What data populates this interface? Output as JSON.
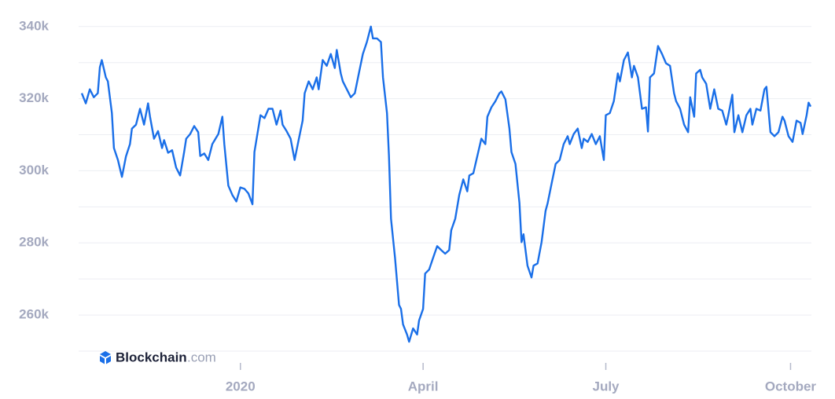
{
  "chart_data": {
    "type": "line",
    "watermark": {
      "brand": "Blockchain",
      "suffix": ".com"
    },
    "x": [
      -79,
      -77,
      -75,
      -73,
      -71,
      -70,
      -69,
      -67,
      -66,
      -64,
      -63,
      -61,
      -59,
      -57,
      -55,
      -54,
      -52,
      -50,
      -48,
      -46,
      -45,
      -43,
      -41,
      -39,
      -38,
      -36,
      -34,
      -32,
      -30,
      -28,
      -27,
      -25,
      -23,
      -21,
      -20,
      -18,
      -16,
      -14,
      -11,
      -9,
      -8,
      -6,
      -4,
      -2,
      0,
      2,
      4,
      6,
      7,
      10,
      12,
      14,
      16,
      18,
      20,
      21,
      23,
      25,
      27,
      29,
      31,
      32,
      34,
      36,
      38,
      39,
      41,
      43,
      45,
      47,
      48,
      50,
      51,
      53,
      55,
      57,
      59,
      61,
      63,
      65,
      66,
      68,
      70,
      71,
      73,
      74,
      75,
      77,
      79,
      80,
      81,
      83,
      84,
      86,
      88,
      89,
      91,
      92,
      94,
      96,
      98,
      100,
      102,
      104,
      105,
      107,
      109,
      111,
      113,
      114,
      116,
      118,
      120,
      122,
      123,
      125,
      127,
      129,
      130,
      132,
      134,
      135,
      137,
      139,
      140,
      141,
      143,
      145,
      146,
      148,
      150,
      152,
      153,
      155,
      157,
      159,
      161,
      163,
      164,
      166,
      168,
      170,
      171,
      173,
      175,
      177,
      179,
      181,
      182,
      184,
      186,
      188,
      189,
      191,
      193,
      195,
      196,
      198,
      200,
      202,
      203,
      204,
      206,
      208,
      210,
      212,
      214,
      216,
      217,
      219,
      221,
      223,
      224,
      226,
      227,
      229,
      230,
      232,
      234,
      236,
      238,
      240,
      242,
      243,
      245,
      246,
      248,
      250,
      252,
      254,
      255,
      257,
      259,
      261,
      262,
      264,
      266,
      268,
      270,
      271,
      273,
      275,
      277,
      279,
      280,
      282,
      283,
      284
    ],
    "series": [
      {
        "color": "#1a6fe8",
        "values": [
          321500,
          318700,
          322600,
          320400,
          321500,
          328700,
          330700,
          325900,
          324800,
          316000,
          306300,
          303000,
          298300,
          304000,
          307400,
          311700,
          312800,
          317200,
          312800,
          318700,
          315000,
          308900,
          311000,
          306300,
          308500,
          305000,
          305700,
          300900,
          298700,
          305200,
          308900,
          310200,
          312400,
          310700,
          304100,
          304800,
          303000,
          307400,
          310200,
          315000,
          307400,
          295900,
          293300,
          291500,
          295400,
          295000,
          293700,
          290700,
          305200,
          315400,
          314600,
          317200,
          317200,
          312800,
          316700,
          312800,
          311000,
          308900,
          303000,
          308500,
          313900,
          321500,
          324800,
          322600,
          325900,
          322600,
          330700,
          329100,
          332400,
          328500,
          333500,
          327000,
          324800,
          322600,
          320400,
          321500,
          327000,
          332400,
          335700,
          340000,
          336700,
          336700,
          335700,
          325900,
          316000,
          304100,
          286700,
          275900,
          262800,
          261700,
          257400,
          254600,
          252600,
          256300,
          254600,
          258500,
          261700,
          271500,
          272600,
          275900,
          279100,
          278000,
          277000,
          278000,
          283500,
          286700,
          293300,
          297600,
          294300,
          298700,
          299300,
          304100,
          308900,
          307400,
          315000,
          317600,
          319300,
          321500,
          322000,
          319800,
          311700,
          305200,
          301900,
          291000,
          280200,
          282400,
          273700,
          270400,
          273700,
          274300,
          280200,
          288900,
          291000,
          296500,
          301900,
          303000,
          307400,
          309600,
          307400,
          310200,
          311700,
          306300,
          308900,
          308000,
          310200,
          307400,
          309600,
          303000,
          315400,
          316000,
          319300,
          327000,
          324800,
          330700,
          332800,
          325900,
          329100,
          325900,
          317200,
          317600,
          310900,
          325900,
          327000,
          334600,
          332400,
          329800,
          329100,
          321500,
          319300,
          317200,
          312800,
          310700,
          320400,
          315000,
          327000,
          328000,
          325900,
          324100,
          317200,
          322600,
          317200,
          316700,
          312800,
          315400,
          321100,
          310700,
          315400,
          310700,
          315400,
          317200,
          312800,
          317200,
          316700,
          322600,
          323300,
          310700,
          309600,
          310700,
          315000,
          313900,
          309600,
          308000,
          313900,
          313300,
          310200,
          315400,
          318900,
          317800
        ]
      }
    ],
    "xlim": [
      -79,
      284
    ],
    "xticks": [
      {
        "value": 0,
        "label": "2020"
      },
      {
        "value": 91,
        "label": "April"
      },
      {
        "value": 182,
        "label": "July"
      },
      {
        "value": 274,
        "label": "October"
      }
    ],
    "ylim": [
      250000,
      343000
    ],
    "yticks": [
      {
        "value": 260000,
        "label": "260k"
      },
      {
        "value": 280000,
        "label": "280k"
      },
      {
        "value": 300000,
        "label": "300k"
      },
      {
        "value": 320000,
        "label": "320k"
      },
      {
        "value": 340000,
        "label": "340k"
      }
    ],
    "ygrid": [
      250000,
      260000,
      270000,
      280000,
      290000,
      300000,
      310000,
      320000,
      330000,
      340000
    ]
  }
}
